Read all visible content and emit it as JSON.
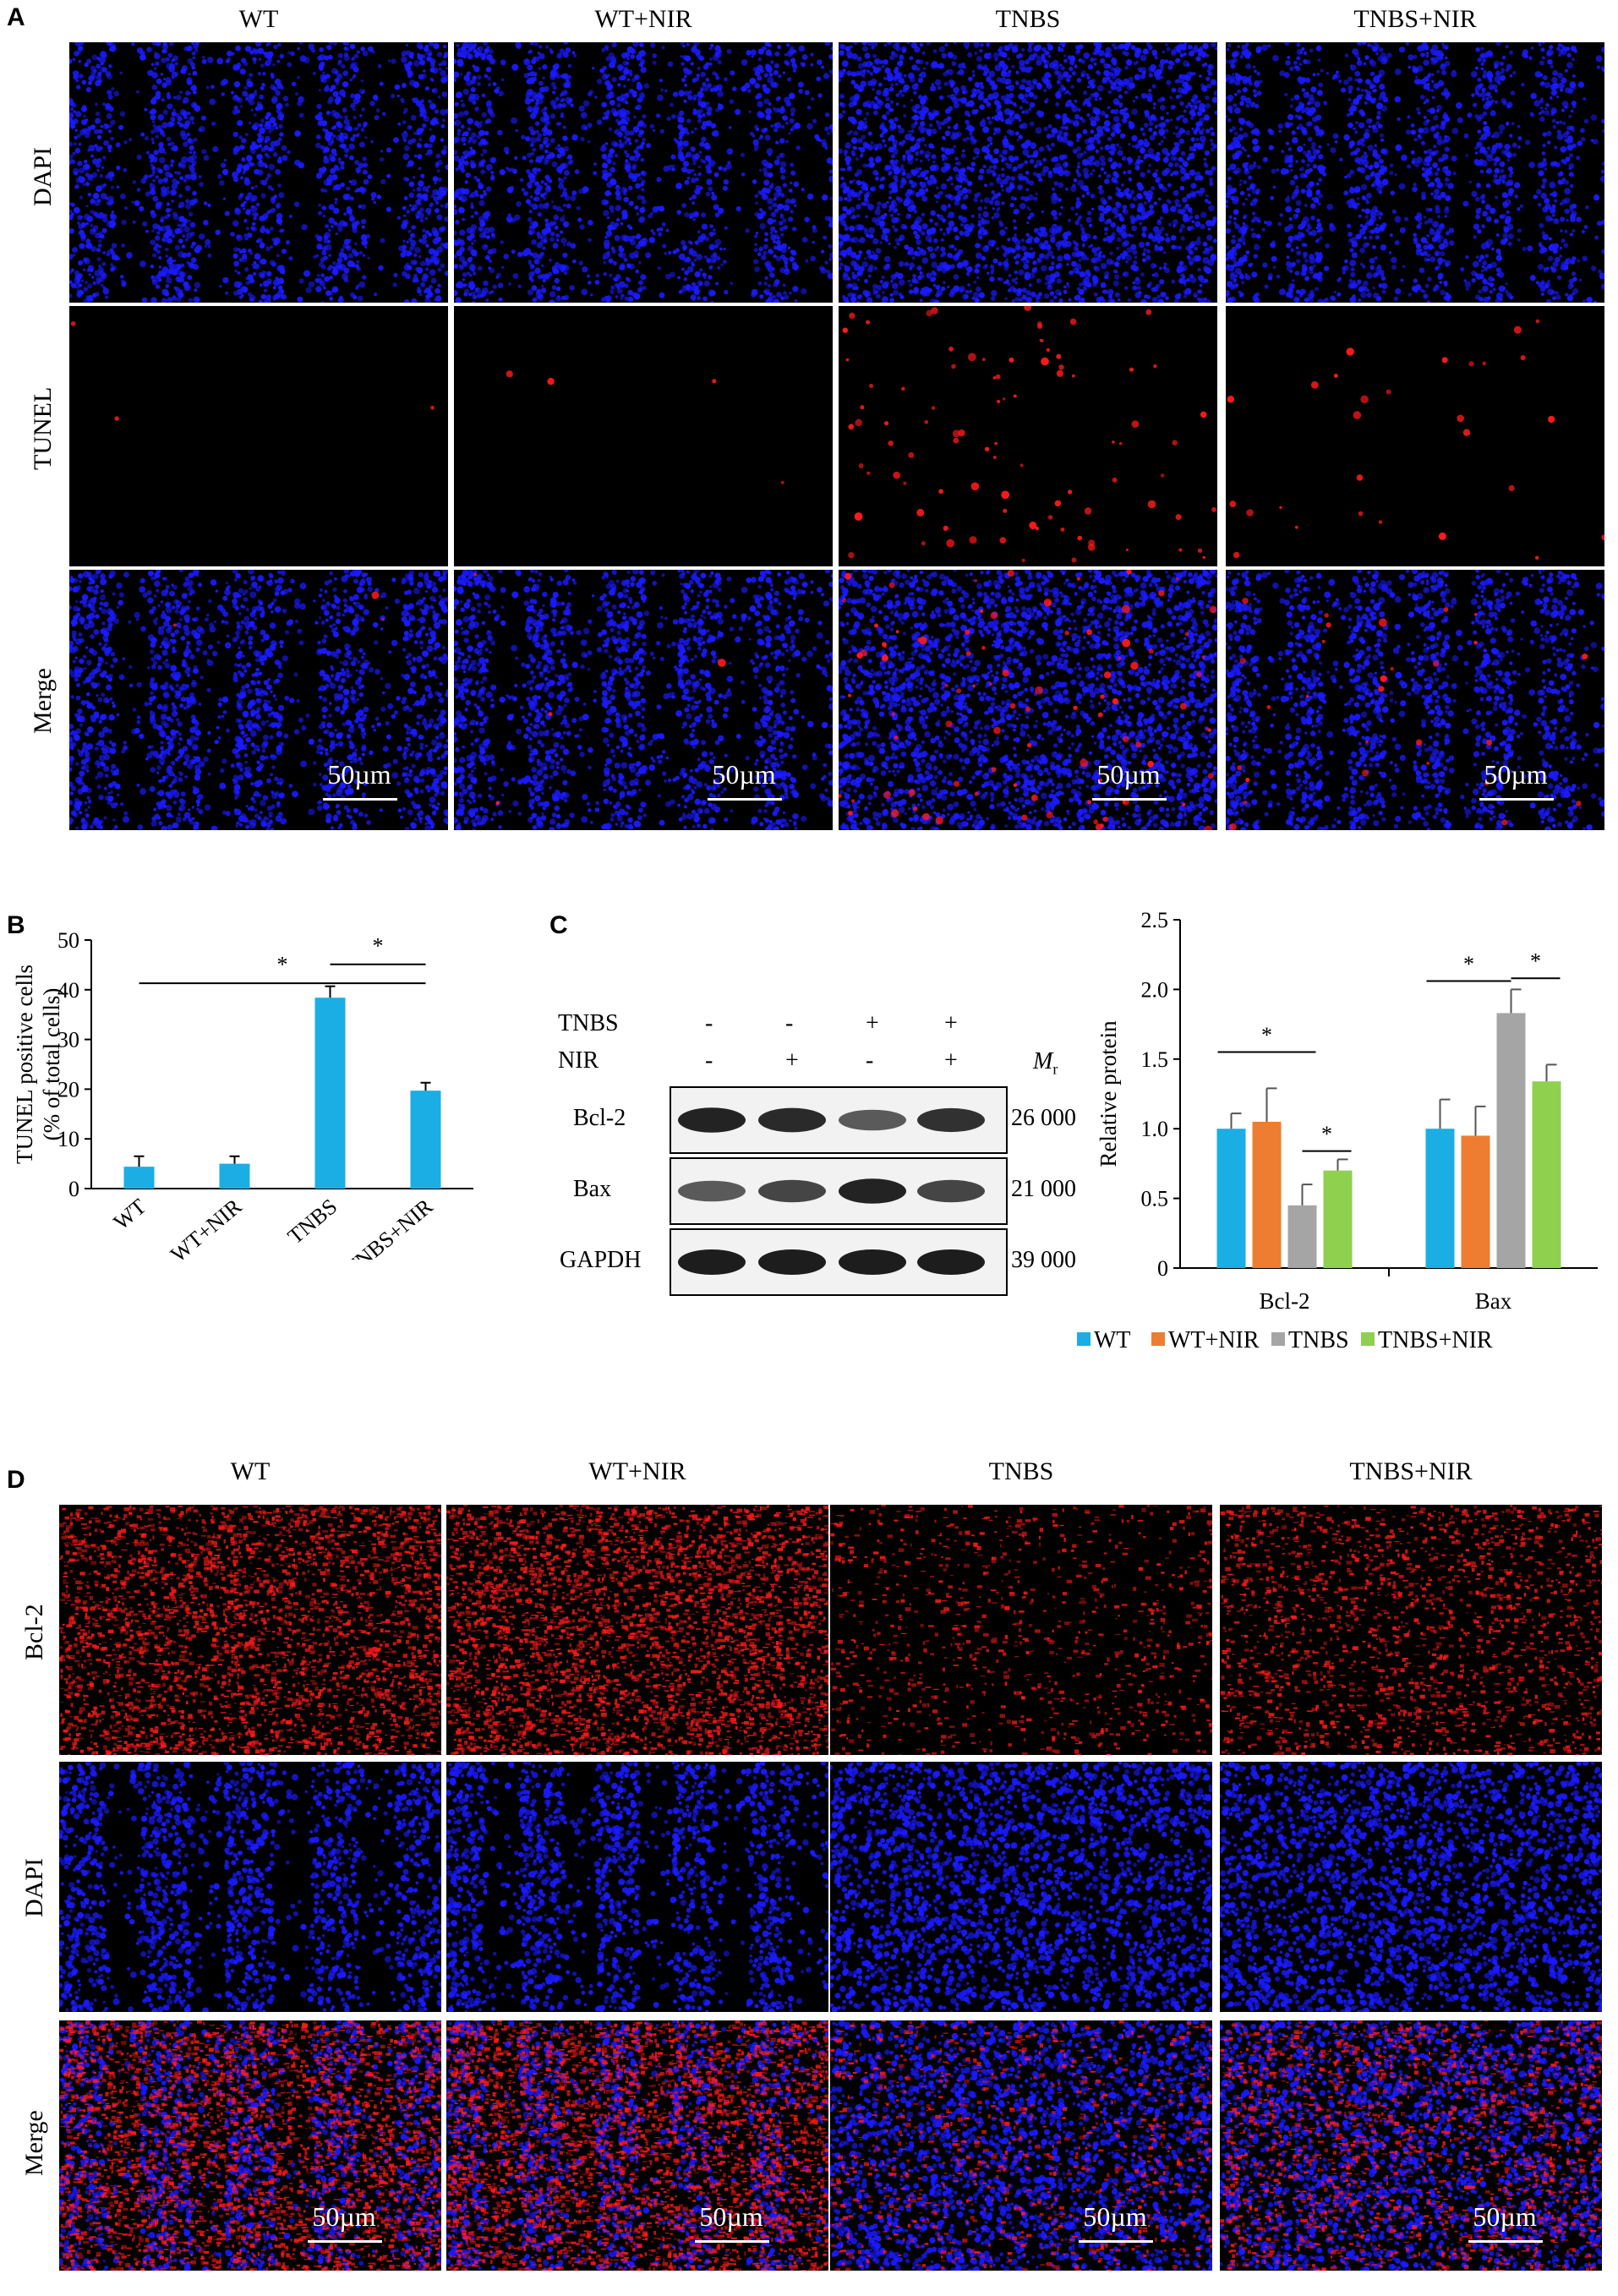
{
  "panel_a": {
    "letter": "A",
    "columns": [
      "WT",
      "WT+NIR",
      "TNBS",
      "TNBS+NIR"
    ],
    "rows": [
      "DAPI",
      "TUNEL",
      "Merge"
    ],
    "scale_bar": "50µm"
  },
  "panel_b": {
    "letter": "B",
    "significance": [
      "*",
      "*"
    ]
  },
  "panel_c": {
    "letter": "C",
    "blot": {
      "treatments": [
        {
          "label": "TNBS",
          "signs": [
            "-",
            "-",
            "+",
            "+"
          ]
        },
        {
          "label": "NIR",
          "signs": [
            "-",
            "+",
            "-",
            "+"
          ]
        }
      ],
      "mr_label": "M",
      "mr_sub": "r",
      "bands": [
        {
          "label": "Bcl-2",
          "mw": "26 000"
        },
        {
          "label": "Bax",
          "mw": "21 000"
        },
        {
          "label": "GAPDH",
          "mw": "39 000"
        }
      ]
    },
    "legend": [
      "WT",
      "WT+NIR",
      "TNBS",
      "TNBS+NIR"
    ],
    "significance": [
      "*",
      "*",
      "*",
      "*"
    ]
  },
  "panel_d": {
    "letter": "D",
    "columns": [
      "WT",
      "WT+NIR",
      "TNBS",
      "TNBS+NIR"
    ],
    "rows": [
      "Bcl-2",
      "DAPI",
      "Merge"
    ],
    "scale_bar": "50µm"
  },
  "colors": {
    "WT": "#1aaee5",
    "WT+NIR": "#ee7d31",
    "TNBS": "#a5a5a5",
    "TNBS+NIR": "#8fd04f",
    "dapi": "#1a1aff",
    "tunel": "#ff1a1a"
  },
  "chart_data": [
    {
      "type": "bar",
      "panel": "B",
      "categories": [
        "WT",
        "WT+NIR",
        "TNBS",
        "TNBS+NIR"
      ],
      "values": [
        4.4,
        5.0,
        38.4,
        19.7
      ],
      "errors": [
        2.1,
        1.5,
        2.3,
        1.6
      ],
      "ylabel": "TUNEL positive cells",
      "ylabel2": "(% of total cells)",
      "ylim": [
        0,
        50
      ],
      "yticks": [
        0,
        10,
        20,
        30,
        40,
        50
      ],
      "color": "#1aaee5",
      "grid": false
    },
    {
      "type": "bar",
      "panel": "C",
      "categories": [
        "Bcl-2",
        "Bax"
      ],
      "series": [
        {
          "name": "WT",
          "values": [
            1.0,
            1.0
          ],
          "errors": [
            0.11,
            0.21
          ]
        },
        {
          "name": "WT+NIR",
          "values": [
            1.05,
            0.95
          ],
          "errors": [
            0.24,
            0.21
          ]
        },
        {
          "name": "TNBS",
          "values": [
            0.45,
            1.83
          ],
          "errors": [
            0.15,
            0.17
          ]
        },
        {
          "name": "TNBS+NIR",
          "values": [
            0.7,
            1.34
          ],
          "errors": [
            0.08,
            0.12
          ]
        }
      ],
      "ylabel": "Relative protein",
      "ylim": [
        0,
        2.5
      ],
      "yticks": [
        "0",
        "0.5",
        "1.0",
        "1.5",
        "2.0",
        "2.5"
      ],
      "legend_position": "bottom",
      "grid": false
    }
  ]
}
